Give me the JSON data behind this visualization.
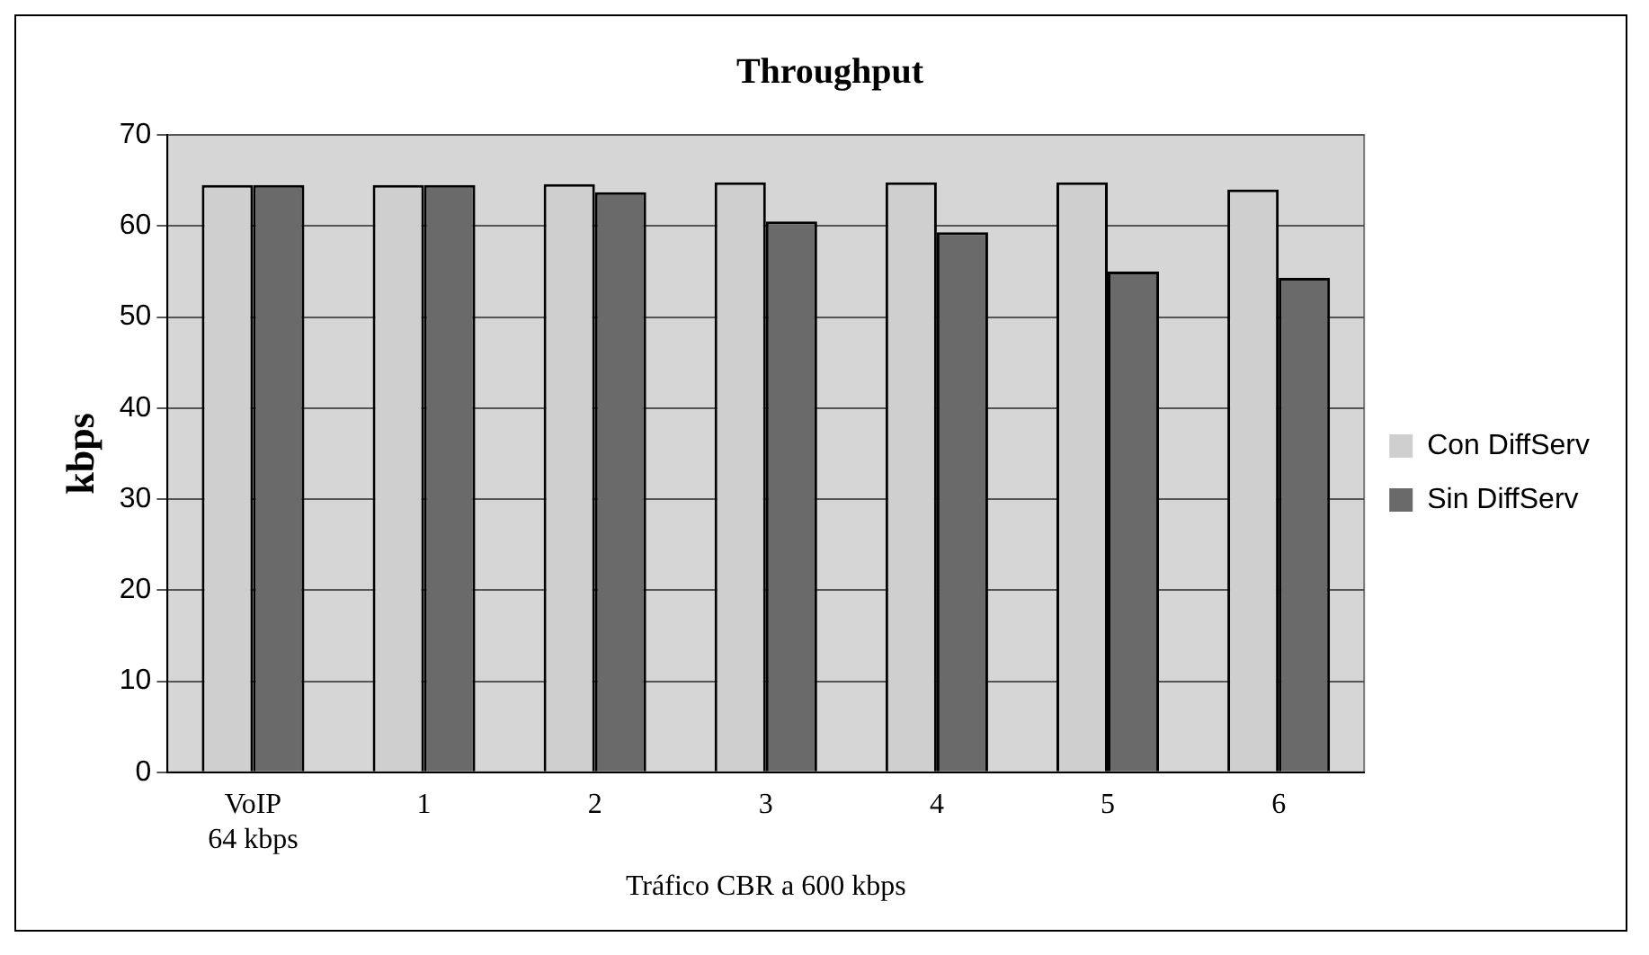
{
  "chart_data": {
    "type": "bar",
    "title": "Throughput",
    "xlabel": "Tráfico CBR a 600 kbps",
    "ylabel": "kbps",
    "categories": [
      "VoIP\n64 kbps",
      "1",
      "2",
      "3",
      "4",
      "5",
      "6"
    ],
    "series": [
      {
        "name": "Con DiffServ",
        "color": "#cfcfcf",
        "values": [
          64.5,
          64.5,
          64.6,
          64.8,
          64.8,
          64.8,
          64
        ]
      },
      {
        "name": "Sin DiffServ",
        "color": "#6a6a6a",
        "values": [
          64.5,
          64.5,
          63.7,
          60.5,
          59.3,
          55,
          54.3
        ]
      }
    ],
    "ylim": [
      0,
      70
    ],
    "yticks": [
      0,
      10,
      20,
      30,
      40,
      50,
      60,
      70
    ],
    "grid": "y",
    "legend": "right"
  }
}
